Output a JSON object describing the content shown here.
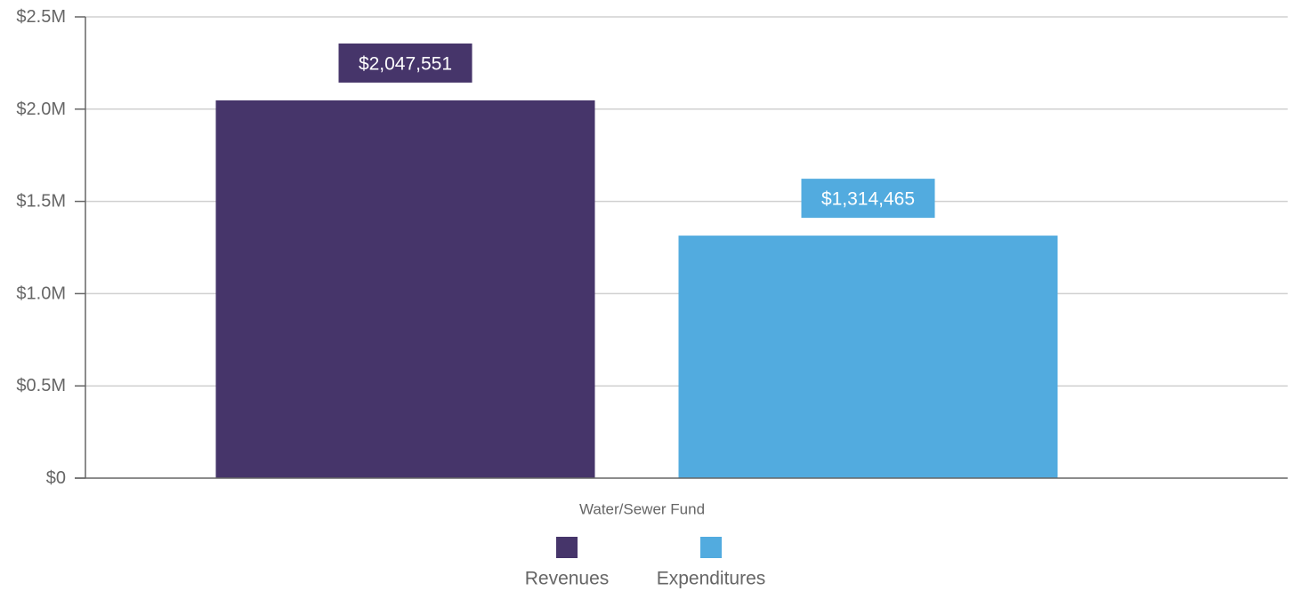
{
  "chart_data": {
    "type": "bar",
    "categories": [
      "Water/Sewer Fund"
    ],
    "series": [
      {
        "name": "Revenues",
        "values": [
          2047551
        ],
        "labels": [
          "$2,047,551"
        ],
        "color": "#46356a"
      },
      {
        "name": "Expenditures",
        "values": [
          1314465
        ],
        "labels": [
          "$1,314,465"
        ],
        "color": "#52abdf"
      }
    ],
    "y_ticks": [
      {
        "value": 0,
        "label": "$0"
      },
      {
        "value": 500000,
        "label": "$0.5M"
      },
      {
        "value": 1000000,
        "label": "$1.0M"
      },
      {
        "value": 1500000,
        "label": "$1.5M"
      },
      {
        "value": 2000000,
        "label": "$2.0M"
      },
      {
        "value": 2500000,
        "label": "$2.5M"
      }
    ],
    "ylim": [
      0,
      2500000
    ],
    "grid": true,
    "legend_position": "bottom",
    "title": "",
    "xlabel": "",
    "ylabel": "",
    "colors": {
      "grid": "#d0d0d0",
      "axis": "#666666",
      "text": "#666666"
    }
  }
}
